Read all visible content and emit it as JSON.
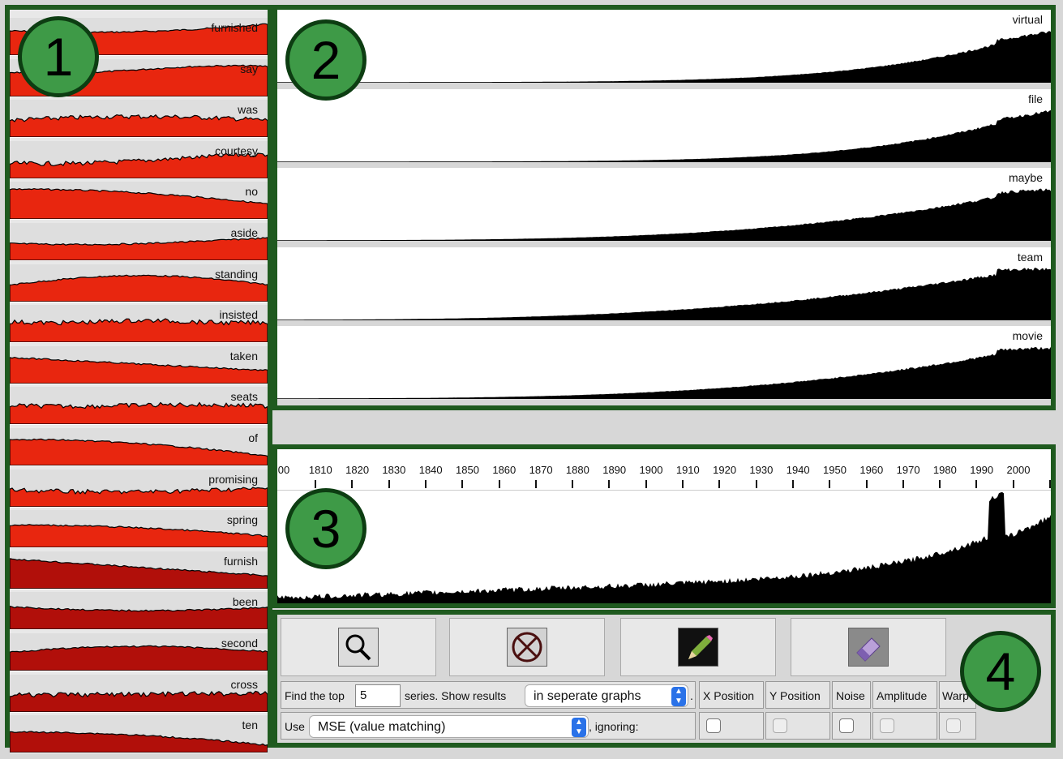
{
  "badges": {
    "b1": "1",
    "b2": "2",
    "b3": "3",
    "b4": "4"
  },
  "sidebar": {
    "items": [
      {
        "label": "furnished",
        "color": "#e8260f"
      },
      {
        "label": "say",
        "color": "#e8260f"
      },
      {
        "label": "was",
        "color": "#e8260f"
      },
      {
        "label": "courtesy",
        "color": "#e8260f"
      },
      {
        "label": "no",
        "color": "#e8260f"
      },
      {
        "label": "aside",
        "color": "#e8260f"
      },
      {
        "label": "standing",
        "color": "#e8260f"
      },
      {
        "label": "insisted",
        "color": "#e8260f"
      },
      {
        "label": "taken",
        "color": "#e8260f"
      },
      {
        "label": "seats",
        "color": "#e8260f"
      },
      {
        "label": "of",
        "color": "#e8260f"
      },
      {
        "label": "promising",
        "color": "#e8260f"
      },
      {
        "label": "spring",
        "color": "#e8260f"
      },
      {
        "label": "furnish",
        "color": "#b10f0a"
      },
      {
        "label": "been",
        "color": "#b10f0a"
      },
      {
        "label": "second",
        "color": "#b10f0a"
      },
      {
        "label": "cross",
        "color": "#b10f0a"
      },
      {
        "label": "ten",
        "color": "#b10f0a"
      }
    ]
  },
  "results": {
    "rows": [
      {
        "label": "virtual"
      },
      {
        "label": "file"
      },
      {
        "label": "maybe"
      },
      {
        "label": "team"
      },
      {
        "label": "movie"
      }
    ]
  },
  "query": {
    "axis_ticks": [
      "00",
      "1810",
      "1820",
      "1830",
      "1840",
      "1850",
      "1860",
      "1870",
      "1880",
      "1890",
      "1900",
      "1910",
      "1920",
      "1930",
      "1940",
      "1950",
      "1960",
      "1970",
      "1980",
      "1990",
      "2000"
    ]
  },
  "controls": {
    "tools": [
      {
        "name": "search-icon"
      },
      {
        "name": "clear-icon"
      },
      {
        "name": "pencil-icon"
      },
      {
        "name": "eraser-icon"
      }
    ],
    "find_top_label": "Find the top",
    "find_top_value": "5",
    "series_label": "series. Show results",
    "display_mode": "in seperate graphs",
    "period": ".",
    "use_label": "Use",
    "metric": "MSE (value matching)",
    "ignoring_label": ", ignoring:",
    "ignore_options": [
      "X Position",
      "Y Position",
      "Noise",
      "Amplitude",
      "Warp"
    ]
  }
}
